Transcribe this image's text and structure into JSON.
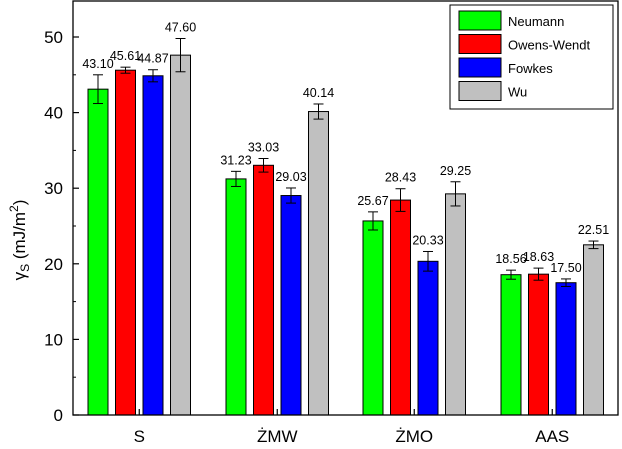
{
  "chart_data": {
    "type": "bar",
    "categories": [
      "S",
      "ŻMW",
      "ŻMO",
      "AAS"
    ],
    "series": [
      {
        "name": "Neumann",
        "color": "#00ff00",
        "values": [
          43.1,
          31.23,
          25.67,
          18.56
        ],
        "labels": [
          "43.10",
          "31.23",
          "25.67",
          "18.56"
        ],
        "errors": [
          1.9,
          1.0,
          1.2,
          0.6
        ]
      },
      {
        "name": "Owens-Wendt",
        "color": "#ff0000",
        "values": [
          45.61,
          33.03,
          28.43,
          18.63
        ],
        "labels": [
          "45.61",
          "33.03",
          "28.43",
          "18.63"
        ],
        "errors": [
          0.4,
          0.9,
          1.5,
          0.8
        ]
      },
      {
        "name": "Fowkes",
        "color": "#0000ff",
        "values": [
          44.87,
          29.03,
          20.33,
          17.5
        ],
        "labels": [
          "44.87",
          "29.03",
          "20.33",
          "17.50"
        ],
        "errors": [
          0.8,
          1.0,
          1.3,
          0.5
        ]
      },
      {
        "name": "Wu",
        "color": "#c0c0c0",
        "values": [
          47.6,
          40.14,
          29.25,
          22.51
        ],
        "labels": [
          "47.60",
          "40.14",
          "29.25",
          "22.51"
        ],
        "errors": [
          2.2,
          1.0,
          1.6,
          0.5
        ]
      }
    ],
    "ylabel": "γS (mJ/m2)",
    "ylabel_parts": {
      "symbol": "γ",
      "sub": "S",
      "unit_open": " (mJ/m",
      "sup": "2",
      "unit_close": ")"
    },
    "ylim": [
      0,
      50
    ],
    "yticks": [
      "0",
      "10",
      "20",
      "30",
      "40",
      "50"
    ],
    "legend_position": "top-right",
    "grid": false
  }
}
